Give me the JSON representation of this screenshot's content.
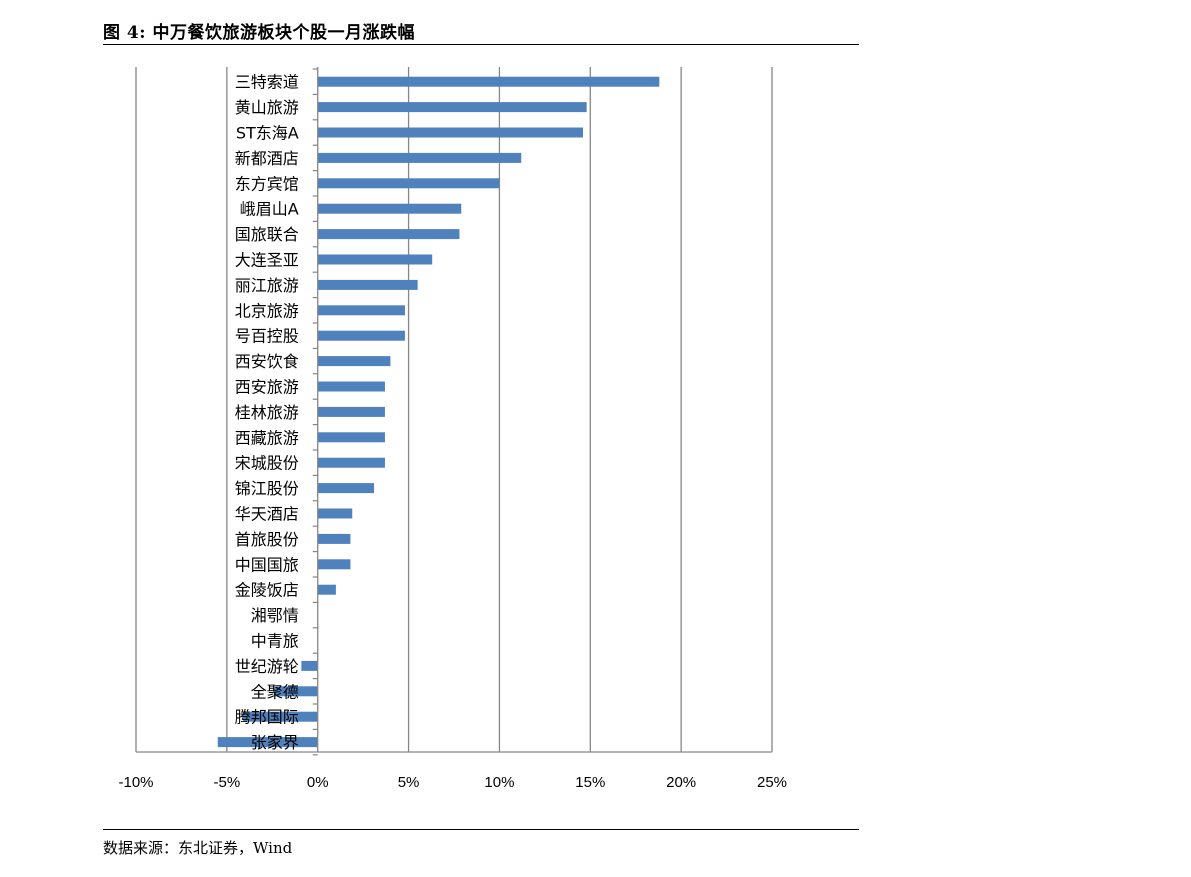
{
  "figure": {
    "title": "图 4: 中万餐饮旅游板块个股一月涨跌幅",
    "source": "数据来源：东北证券，Wind"
  },
  "chart_data": {
    "type": "bar",
    "orientation": "horizontal",
    "title": "",
    "xlabel": "",
    "ylabel": "",
    "categories": [
      "三特索道",
      "黄山旅游",
      "ST东海A",
      "新都酒店",
      "东方宾馆",
      "峨眉山A",
      "国旅联合",
      "大连圣亚",
      "丽江旅游",
      "北京旅游",
      "号百控股",
      "西安饮食",
      "西安旅游",
      "桂林旅游",
      "西藏旅游",
      "宋城股份",
      "锦江股份",
      "华天酒店",
      "首旅股份",
      "中国国旅",
      "金陵饭店",
      "湘鄂情",
      "中青旅",
      "世纪游轮",
      "全聚德",
      "腾邦国际",
      "张家界"
    ],
    "values": [
      18.8,
      14.8,
      14.6,
      11.2,
      10.0,
      7.9,
      7.8,
      6.3,
      5.5,
      4.8,
      4.8,
      4.0,
      3.7,
      3.7,
      3.7,
      3.7,
      3.1,
      1.9,
      1.8,
      1.8,
      1.0,
      0.0,
      0.0,
      -0.9,
      -2.4,
      -4.1,
      -5.5
    ],
    "xlim": [
      -10,
      25
    ],
    "xticks": [
      -10,
      -5,
      0,
      5,
      10,
      15,
      20,
      25
    ],
    "xtick_labels": [
      "-10%",
      "-5%",
      "0%",
      "5%",
      "10%",
      "15%",
      "20%",
      "25%"
    ],
    "grid": "vertical",
    "legend": "none",
    "bar_color": "#4F81BD"
  }
}
